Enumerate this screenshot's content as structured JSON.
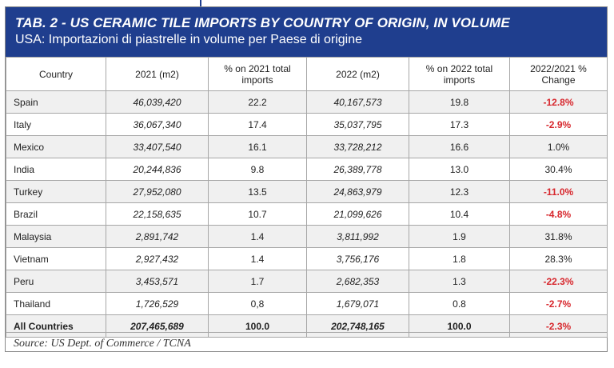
{
  "header": {
    "title": "TAB. 2 - US CERAMIC TILE IMPORTS BY COUNTRY OF ORIGIN, IN VOLUME",
    "subtitle": "USA: Importazioni di piastrelle in volume per Paese di origine"
  },
  "table": {
    "columns": [
      "Country",
      "2021 (m2)",
      "% on 2021 total imports",
      "2022 (m2)",
      "% on 2022 total imports",
      "2022/2021 % Change"
    ],
    "rows": [
      {
        "country": "Spain",
        "v2021": "46,039,420",
        "p2021": "22.2",
        "v2022": "40,167,573",
        "p2022": "19.8",
        "change": "-12.8%",
        "negative": true
      },
      {
        "country": "Italy",
        "v2021": "36,067,340",
        "p2021": "17.4",
        "v2022": "35,037,795",
        "p2022": "17.3",
        "change": "-2.9%",
        "negative": true
      },
      {
        "country": "Mexico",
        "v2021": "33,407,540",
        "p2021": "16.1",
        "v2022": "33,728,212",
        "p2022": "16.6",
        "change": "1.0%",
        "negative": false
      },
      {
        "country": "India",
        "v2021": "20,244,836",
        "p2021": "9.8",
        "v2022": "26,389,778",
        "p2022": "13.0",
        "change": "30.4%",
        "negative": false
      },
      {
        "country": "Turkey",
        "v2021": "27,952,080",
        "p2021": "13.5",
        "v2022": "24,863,979",
        "p2022": "12.3",
        "change": "-11.0%",
        "negative": true
      },
      {
        "country": "Brazil",
        "v2021": "22,158,635",
        "p2021": "10.7",
        "v2022": "21,099,626",
        "p2022": "10.4",
        "change": "-4.8%",
        "negative": true
      },
      {
        "country": "Malaysia",
        "v2021": "2,891,742",
        "p2021": "1.4",
        "v2022": "3,811,992",
        "p2022": "1.9",
        "change": "31.8%",
        "negative": false
      },
      {
        "country": "Vietnam",
        "v2021": "2,927,432",
        "p2021": "1.4",
        "v2022": "3,756,176",
        "p2022": "1.8",
        "change": "28.3%",
        "negative": false
      },
      {
        "country": "Peru",
        "v2021": "3,453,571",
        "p2021": "1.7",
        "v2022": "2,682,353",
        "p2022": "1.3",
        "change": "-22.3%",
        "negative": true
      },
      {
        "country": "Thailand",
        "v2021": "1,726,529",
        "p2021": "0,8",
        "v2022": "1,679,071",
        "p2022": "0.8",
        "change": "-2.7%",
        "negative": true
      }
    ],
    "total": {
      "country": "All Countries",
      "v2021": "207,465,689",
      "p2021": "100.0",
      "v2022": "202,748,165",
      "p2022": "100.0",
      "change": "-2.3%",
      "negative": true
    }
  },
  "source": "Source: US Dept. of Commerce / TCNA",
  "colors": {
    "header_bg": "#1f3e8e",
    "negative": "#d7262c",
    "stripe": "#f0f0f0"
  }
}
